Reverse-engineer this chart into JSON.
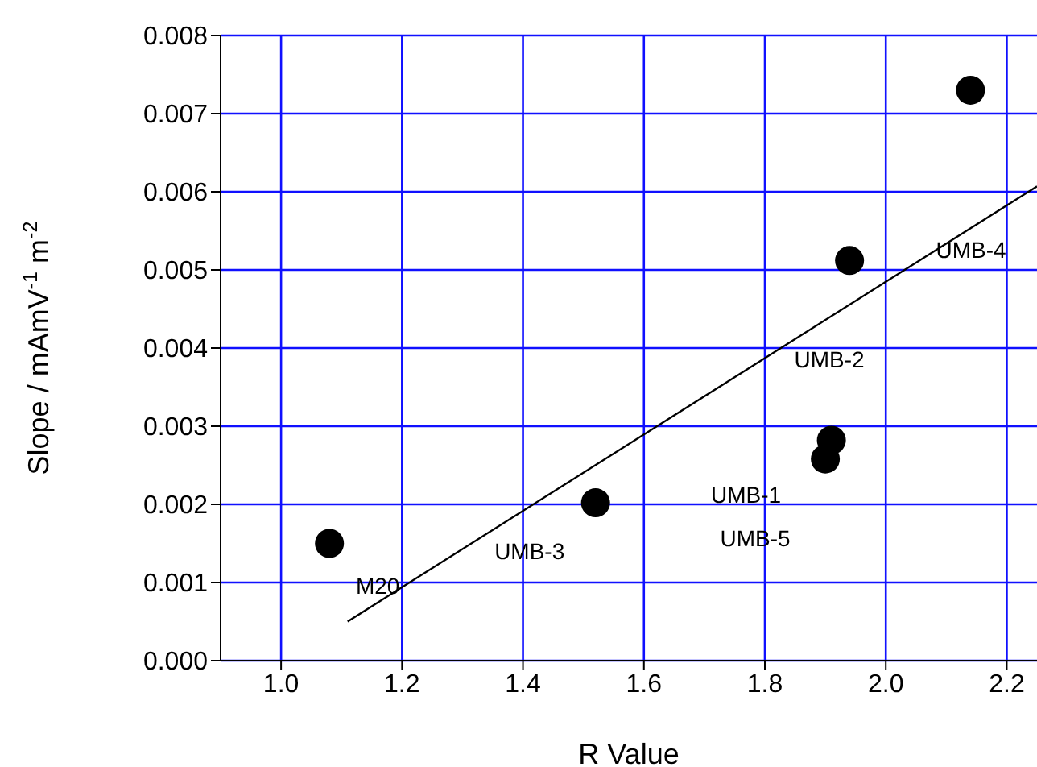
{
  "chart_data": {
    "type": "scatter",
    "xlabel": "R Value",
    "ylabel": "Slope / mAmV$^{-1}$ m$^{-2}$",
    "xlim": [
      0.9,
      2.25
    ],
    "xticks": [
      {
        "value": 1.0,
        "label": "1.0"
      },
      {
        "value": 1.2,
        "label": "1.2"
      },
      {
        "value": 1.4,
        "label": "1.4"
      },
      {
        "value": 1.6,
        "label": "1.6"
      },
      {
        "value": 1.8,
        "label": "1.8"
      },
      {
        "value": 2.0,
        "label": "2.0"
      },
      {
        "value": 2.2,
        "label": "2.2"
      }
    ],
    "ylim": [
      0,
      0.008
    ],
    "yticks": [
      {
        "value": 0,
        "label": "0.000"
      },
      {
        "value": 0.001,
        "label": "0.001"
      },
      {
        "value": 0.002,
        "label": "0.002"
      },
      {
        "value": 0.003,
        "label": "0.003"
      },
      {
        "value": 0.004,
        "label": "0.004"
      },
      {
        "value": 0.005,
        "label": "0.005"
      },
      {
        "value": 0.006,
        "label": "0.006"
      },
      {
        "value": 0.007,
        "label": "0.007"
      },
      {
        "value": 0.008,
        "label": "0.008"
      }
    ],
    "grid": true,
    "series": [
      {
        "color": "#000000",
        "marker": "circle",
        "x": [
          1.08,
          1.52,
          1.9,
          1.91,
          1.94,
          2.14
        ],
        "values": [
          0.0015,
          0.00202,
          0.00258,
          0.00282,
          0.00512,
          0.0073
        ]
      },
      {
        "type": "line",
        "color": "#000000",
        "x": [
          1.11,
          2.25
        ],
        "values": [
          0.0005,
          0.00607
        ]
      }
    ],
    "annotations": [
      {
        "text": "M20",
        "x": 1.08,
        "y": 0.0015
      },
      {
        "text": "UMB-3",
        "x": 1.52,
        "y": 0.00202
      },
      {
        "text": "UMB-1",
        "x": 1.91,
        "y": 0.00282
      },
      "UMB-5",
      "UMB-2",
      "UMB-4"
    ]
  }
}
